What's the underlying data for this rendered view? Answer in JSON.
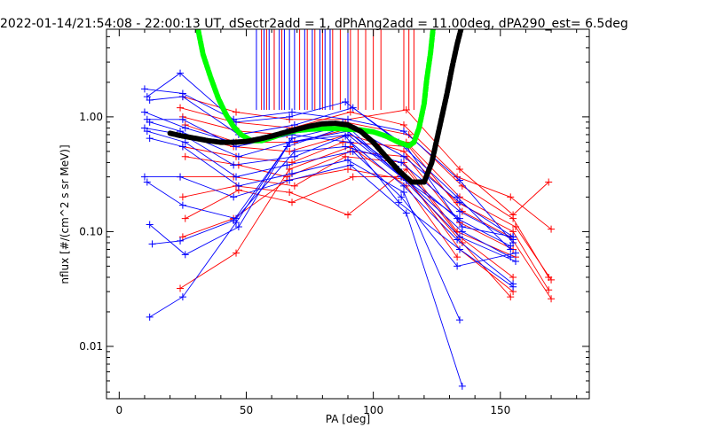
{
  "chart_data": {
    "type": "line",
    "title": "2022-01-14/21:54:08 - 22:00:13 UT, dSectr2add = 1, dPhAng2add = 11.00deg, dPA290_est=    6.5deg",
    "xlabel": "PA [deg]",
    "ylabel": "nflux [#/(cm^2 s sr MeV)]",
    "xlim": [
      -5,
      185
    ],
    "ylim": [
      0.0035,
      5.8
    ],
    "yscale": "log",
    "x_ticks": [
      0,
      50,
      100,
      150
    ],
    "x_tick_labels": [
      "0",
      "50",
      "100",
      "150"
    ],
    "y_ticks": [
      0.01,
      0.1,
      1.0
    ],
    "y_tick_labels": [
      "0.01",
      "0.10",
      "1.00"
    ],
    "colors": {
      "blue": "#0000ff",
      "red": "#ff0000",
      "black": "#000000",
      "green": "#00ff00"
    },
    "vertical_markers": {
      "blue": [
        54,
        57,
        59,
        61,
        63,
        65,
        67,
        69,
        73,
        76,
        79,
        81,
        83,
        90
      ],
      "red": [
        56,
        58,
        61,
        64,
        71,
        74,
        77,
        80,
        84,
        87,
        91,
        94,
        97,
        100,
        103,
        112,
        114,
        116
      ]
    },
    "blue_series": [
      {
        "x": [
          10,
          25,
          45,
          68,
          90,
          112,
          134,
          155
        ],
        "y": [
          1.75,
          1.6,
          0.95,
          1.1,
          0.95,
          0.75,
          0.28,
          0.08
        ]
      },
      {
        "x": [
          11,
          24,
          46,
          67,
          89,
          110,
          133,
          154
        ],
        "y": [
          1.5,
          2.4,
          0.9,
          1.0,
          1.35,
          0.6,
          0.2,
          0.07
        ]
      },
      {
        "x": [
          12,
          25,
          47,
          69,
          92,
          113,
          135,
          155
        ],
        "y": [
          1.4,
          1.5,
          0.7,
          0.85,
          1.2,
          0.55,
          0.11,
          0.09
        ]
      },
      {
        "x": [
          10,
          26,
          45,
          66,
          88,
          111,
          134,
          156
        ],
        "y": [
          1.1,
          0.8,
          0.6,
          0.75,
          0.9,
          0.3,
          0.09,
          0.055
        ]
      },
      {
        "x": [
          11,
          25,
          46,
          68,
          91,
          112,
          133,
          155
        ],
        "y": [
          0.95,
          0.95,
          0.55,
          0.7,
          0.6,
          0.25,
          0.085,
          0.035
        ]
      },
      {
        "x": [
          12,
          24,
          47,
          67,
          90,
          113,
          135,
          154
        ],
        "y": [
          0.9,
          0.75,
          0.45,
          0.6,
          0.75,
          0.28,
          0.1,
          0.06
        ]
      },
      {
        "x": [
          10,
          25,
          45,
          69,
          89,
          110,
          134,
          155
        ],
        "y": [
          0.8,
          0.7,
          0.38,
          0.45,
          0.68,
          0.18,
          0.07,
          0.033
        ]
      },
      {
        "x": [
          11,
          26,
          46,
          66,
          92,
          111,
          133,
          156
        ],
        "y": [
          0.75,
          0.6,
          0.3,
          0.38,
          0.5,
          0.2,
          0.05,
          0.065
        ]
      },
      {
        "x": [
          12,
          25,
          47,
          68,
          90,
          112,
          134
        ],
        "y": [
          0.65,
          0.55,
          0.25,
          0.32,
          0.42,
          0.22,
          0.017
        ]
      },
      {
        "x": [
          10,
          24,
          45,
          67,
          91,
          113,
          135
        ],
        "y": [
          0.3,
          0.3,
          0.2,
          0.28,
          0.38,
          0.145,
          0.0045
        ]
      },
      {
        "x": [
          11,
          25,
          46,
          69,
          89,
          111,
          134,
          155
        ],
        "y": [
          0.27,
          0.17,
          0.13,
          0.5,
          0.55,
          0.4,
          0.15,
          0.085
        ]
      },
      {
        "x": [
          12,
          26,
          47,
          68,
          90,
          112,
          134,
          155
        ],
        "y": [
          0.115,
          0.063,
          0.11,
          0.65,
          0.85,
          0.45,
          0.18,
          0.09
        ]
      },
      {
        "x": [
          13,
          24,
          45,
          66,
          88,
          110,
          133,
          154
        ],
        "y": [
          0.078,
          0.083,
          0.125,
          0.55,
          0.8,
          0.35,
          0.13,
          0.075
        ]
      },
      {
        "x": [
          12,
          25,
          46,
          67,
          90,
          111,
          134
        ],
        "y": [
          0.018,
          0.027,
          0.12,
          0.6,
          0.7,
          0.3,
          0.13
        ]
      }
    ],
    "red_series": [
      {
        "x": [
          25,
          46,
          67,
          90,
          113,
          134,
          155,
          169
        ],
        "y": [
          1.5,
          1.1,
          0.95,
          0.95,
          1.15,
          0.35,
          0.14,
          0.27
        ]
      },
      {
        "x": [
          24,
          45,
          68,
          91,
          112,
          133,
          154,
          170
        ],
        "y": [
          1.2,
          0.9,
          0.8,
          1.1,
          0.85,
          0.3,
          0.2,
          0.105
        ]
      },
      {
        "x": [
          25,
          47,
          66,
          89,
          114,
          135,
          155,
          169
        ],
        "y": [
          1.0,
          0.75,
          0.7,
          0.9,
          0.7,
          0.25,
          0.13,
          0.04
        ]
      },
      {
        "x": [
          26,
          46,
          69,
          92,
          113,
          134,
          156,
          170
        ],
        "y": [
          0.85,
          0.6,
          0.6,
          0.8,
          0.6,
          0.2,
          0.11,
          0.038
        ]
      },
      {
        "x": [
          24,
          45,
          67,
          90,
          112,
          133,
          155,
          169
        ],
        "y": [
          0.7,
          0.55,
          0.5,
          0.7,
          0.5,
          0.18,
          0.1,
          0.031
        ]
      },
      {
        "x": [
          25,
          46,
          68,
          88,
          114,
          135,
          154,
          170
        ],
        "y": [
          0.55,
          0.45,
          0.4,
          0.6,
          0.55,
          0.15,
          0.09,
          0.026
        ]
      },
      {
        "x": [
          26,
          47,
          66,
          91,
          113,
          134,
          155
        ],
        "y": [
          0.45,
          0.38,
          0.3,
          0.5,
          0.45,
          0.12,
          0.07
        ]
      },
      {
        "x": [
          24,
          45,
          69,
          89,
          112,
          133,
          156
        ],
        "y": [
          0.3,
          0.3,
          0.25,
          0.45,
          0.4,
          0.1,
          0.06
        ]
      },
      {
        "x": [
          25,
          46,
          67,
          90,
          113,
          134,
          155
        ],
        "y": [
          0.2,
          0.25,
          0.22,
          0.14,
          0.35,
          0.09,
          0.04
        ]
      },
      {
        "x": [
          26,
          47,
          68,
          92,
          112,
          135,
          154
        ],
        "y": [
          0.13,
          0.23,
          0.18,
          0.3,
          0.3,
          0.08,
          0.027
        ]
      },
      {
        "x": [
          25,
          45,
          66,
          90,
          114,
          134,
          155
        ],
        "y": [
          0.09,
          0.13,
          0.28,
          0.35,
          0.28,
          0.07,
          0.03
        ]
      },
      {
        "x": [
          24,
          46,
          67,
          91,
          113,
          133
        ],
        "y": [
          0.032,
          0.065,
          0.35,
          0.55,
          0.25,
          0.06
        ]
      }
    ],
    "black_curve": {
      "x": [
        20,
        25,
        30,
        35,
        40,
        45,
        50,
        55,
        60,
        65,
        70,
        75,
        80,
        85,
        90,
        95,
        100,
        105,
        110,
        115,
        120,
        123,
        126,
        129,
        131,
        133,
        134.5
      ],
      "y": [
        0.72,
        0.68,
        0.65,
        0.62,
        0.6,
        0.6,
        0.61,
        0.64,
        0.68,
        0.73,
        0.78,
        0.83,
        0.87,
        0.88,
        0.85,
        0.75,
        0.6,
        0.45,
        0.34,
        0.27,
        0.27,
        0.4,
        0.8,
        1.6,
        2.7,
        4.3,
        5.8
      ]
    },
    "green_curve": {
      "x": [
        31,
        33,
        36,
        39,
        42,
        45,
        48,
        52,
        56,
        60,
        65,
        70,
        75,
        80,
        85,
        90,
        95,
        100,
        105,
        110,
        114,
        116,
        118,
        120,
        121,
        122.5,
        123.5
      ],
      "y": [
        5.8,
        3.5,
        2.2,
        1.45,
        1.05,
        0.82,
        0.7,
        0.62,
        0.62,
        0.66,
        0.72,
        0.76,
        0.78,
        0.79,
        0.79,
        0.78,
        0.77,
        0.74,
        0.68,
        0.6,
        0.56,
        0.6,
        0.8,
        1.3,
        2.1,
        3.6,
        5.8
      ]
    }
  }
}
